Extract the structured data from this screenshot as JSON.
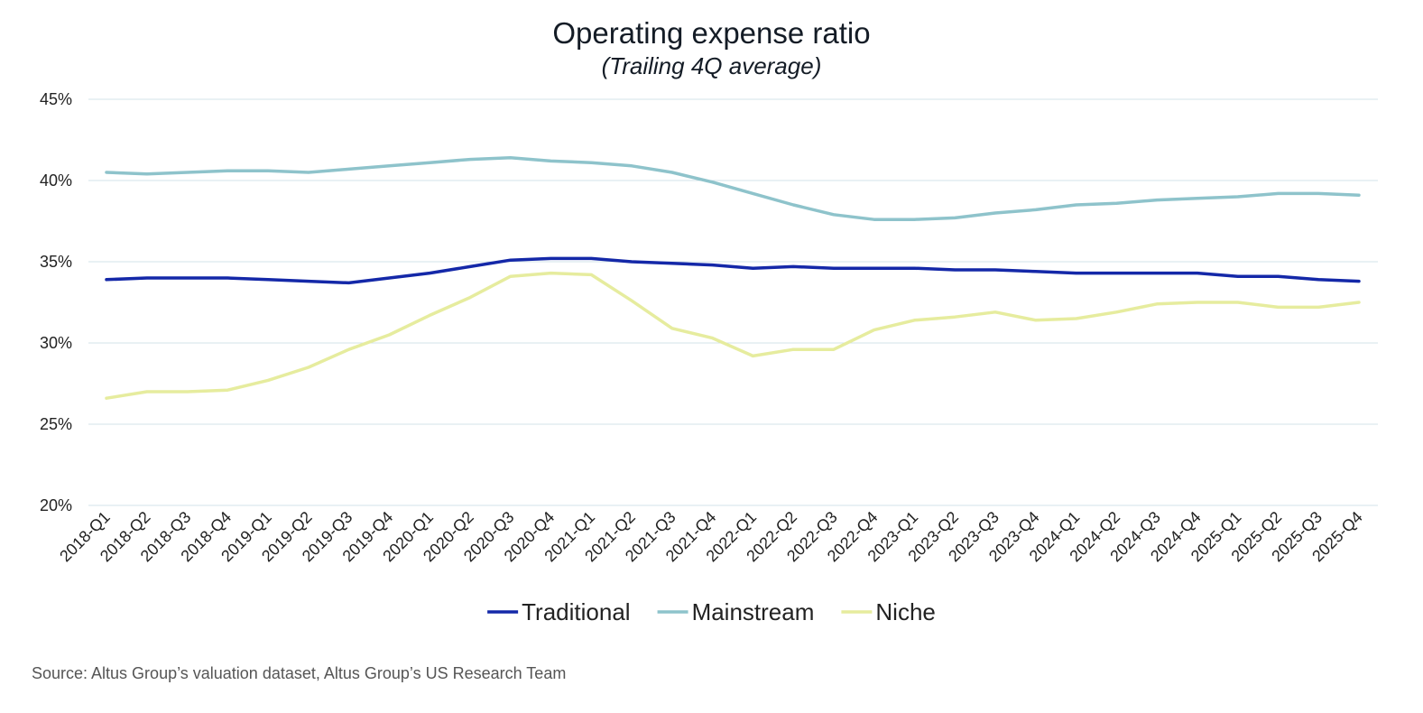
{
  "source": "Source: Altus Group’s valuation dataset, Altus Group’s US Research Team",
  "chart_data": {
    "type": "line",
    "title": "Operating expense ratio",
    "subtitle": "(Trailing 4Q average)",
    "xlabel": "",
    "ylabel": "",
    "ylim": [
      20,
      45
    ],
    "yticks": [
      20,
      25,
      30,
      35,
      40,
      45
    ],
    "ytick_labels": [
      "20%",
      "25%",
      "30%",
      "35%",
      "40%",
      "45%"
    ],
    "grid": true,
    "legend_position": "bottom",
    "categories": [
      "2018-Q1",
      "2018-Q2",
      "2018-Q3",
      "2018-Q4",
      "2019-Q1",
      "2019-Q2",
      "2019-Q3",
      "2019-Q4",
      "2020-Q1",
      "2020-Q2",
      "2020-Q3",
      "2020-Q4",
      "2021-Q1",
      "2021-Q2",
      "2021-Q3",
      "2021-Q4",
      "2022-Q1",
      "2022-Q2",
      "2022-Q3",
      "2022-Q4",
      "2023-Q1",
      "2023-Q2",
      "2023-Q3",
      "2023-Q4",
      "2024-Q1",
      "2024-Q2",
      "2024-Q3",
      "2024-Q4",
      "2025-Q1",
      "2025-Q2",
      "2025-Q3",
      "2025-Q4"
    ],
    "series": [
      {
        "name": "Traditional",
        "color": "#1428a8",
        "values": [
          33.9,
          34.0,
          34.0,
          34.0,
          33.9,
          33.8,
          33.7,
          34.0,
          34.3,
          34.7,
          35.1,
          35.2,
          35.2,
          35.0,
          34.9,
          34.8,
          34.6,
          34.7,
          34.6,
          34.6,
          34.6,
          34.5,
          34.5,
          34.4,
          34.3,
          34.3,
          34.3,
          34.3,
          34.1,
          34.1,
          33.9,
          33.8
        ]
      },
      {
        "name": "Mainstream",
        "color": "#8ec3cb",
        "values": [
          40.5,
          40.4,
          40.5,
          40.6,
          40.6,
          40.5,
          40.7,
          40.9,
          41.1,
          41.3,
          41.4,
          41.2,
          41.1,
          40.9,
          40.5,
          39.9,
          39.2,
          38.5,
          37.9,
          37.6,
          37.6,
          37.7,
          38.0,
          38.2,
          38.5,
          38.6,
          38.8,
          38.9,
          39.0,
          39.2,
          39.2,
          39.1
        ]
      },
      {
        "name": "Niche",
        "color": "#e6ec9e",
        "values": [
          26.6,
          27.0,
          27.0,
          27.1,
          27.7,
          28.5,
          29.6,
          30.5,
          31.7,
          32.8,
          34.1,
          34.3,
          34.2,
          32.6,
          30.9,
          30.3,
          29.2,
          29.6,
          29.6,
          30.8,
          31.4,
          31.6,
          31.9,
          31.4,
          31.5,
          31.9,
          32.4,
          32.5,
          32.5,
          32.2,
          32.2,
          32.5
        ]
      }
    ]
  }
}
